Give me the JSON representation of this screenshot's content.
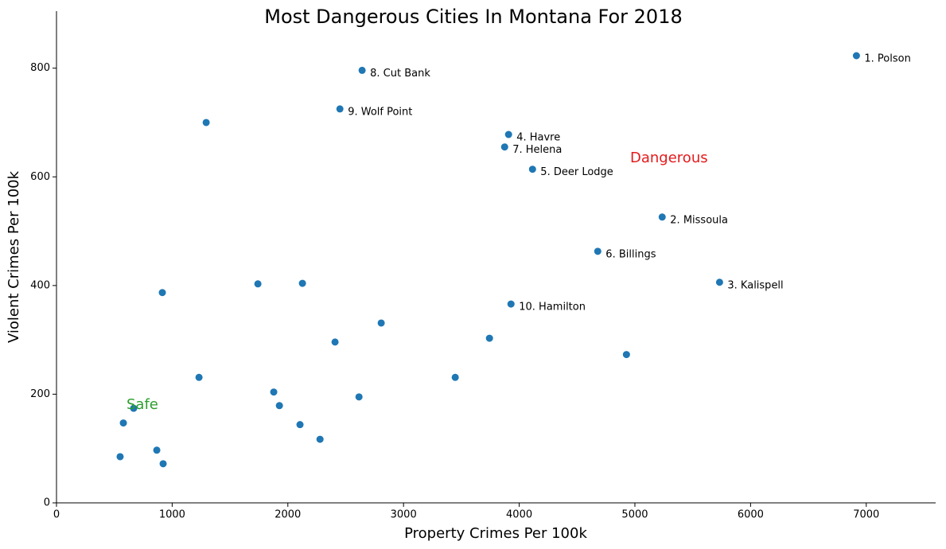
{
  "chart_data": {
    "type": "scatter",
    "title": "Most Dangerous Cities In Montana For 2018",
    "xlabel": "Property Crimes Per 100k",
    "ylabel": "Violent Crimes Per 100k",
    "color": "#1f77b4",
    "x": [
      6915,
      2642,
      2450,
      1294,
      3908,
      3874,
      4115,
      5236,
      4679,
      5732,
      3929,
      1741,
      2126,
      915,
      2807,
      2408,
      3743,
      4927,
      1232,
      3447,
      1878,
      2615,
      1927,
      667,
      578,
      2105,
      2278,
      550,
      867,
      922
    ],
    "values": [
      823,
      796,
      725,
      700,
      678,
      655,
      614,
      526,
      463,
      406,
      366,
      403,
      404,
      387,
      331,
      296,
      303,
      273,
      231,
      231,
      204,
      195,
      179,
      174,
      147,
      144,
      117,
      85,
      97,
      72
    ],
    "labels": [
      "1. Polson",
      "8. Cut Bank",
      "9. Wolf Point",
      null,
      "4. Havre",
      "7. Helena",
      "5. Deer Lodge",
      "2. Missoula",
      "6. Billings",
      "3. Kalispell",
      "10. Hamilton",
      null,
      null,
      null,
      null,
      null,
      null,
      null,
      null,
      null,
      null,
      null,
      null,
      null,
      null,
      null,
      null,
      null,
      null,
      null
    ],
    "annotations": [
      {
        "text": "Dangerous",
        "color": "#e41a1c"
      },
      {
        "text": "Safe",
        "color": "#2ca02c"
      }
    ],
    "xlim": [
      0,
      7600
    ],
    "xticks": [
      0,
      1000,
      2000,
      3000,
      4000,
      5000,
      6000,
      7000
    ],
    "ylim": [
      0,
      905
    ],
    "yticks": [
      0,
      200,
      400,
      600,
      800
    ],
    "grid": false
  }
}
